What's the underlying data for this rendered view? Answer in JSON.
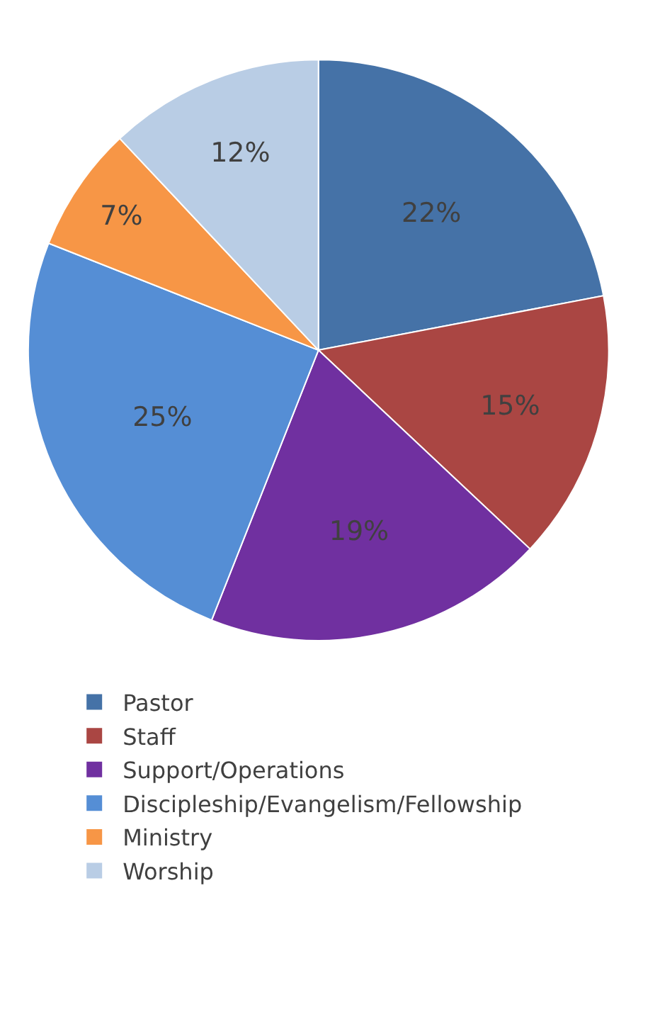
{
  "chart_data": {
    "type": "pie",
    "categories": [
      "Pastor",
      "Staff",
      "Support/Operations",
      "Discipleship/Evangelism/Fellowship",
      "Ministry",
      "Worship"
    ],
    "values": [
      22,
      15,
      19,
      25,
      7,
      12
    ],
    "colors": [
      "#4572a7",
      "#aa4643",
      "#7030a0",
      "#558ed5",
      "#f79646",
      "#b9cde5"
    ],
    "value_labels": [
      "22%",
      "15%",
      "19%",
      "25%",
      "7%",
      "12%"
    ],
    "legend": "bottom"
  }
}
